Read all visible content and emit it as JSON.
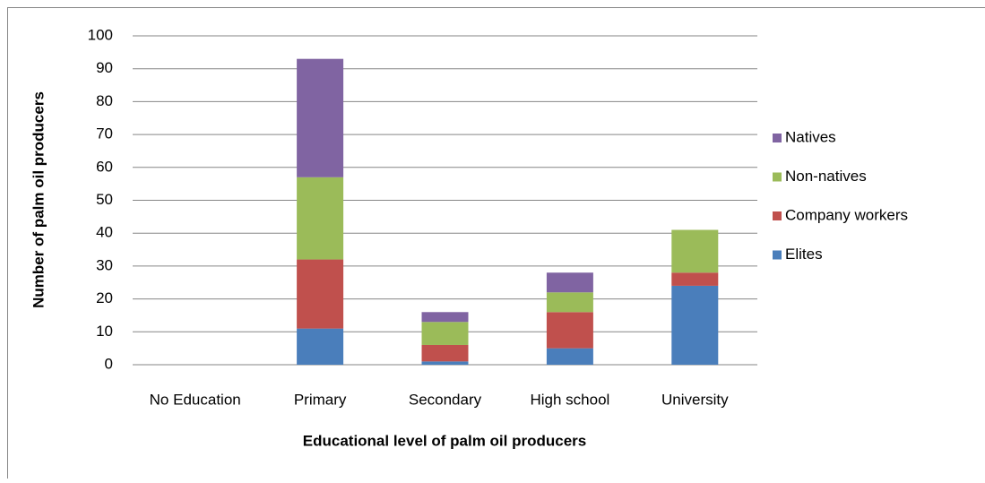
{
  "chart_data": {
    "type": "stacked_bar",
    "x_label": "Educational level of palm oil producers",
    "y_label": "Number of palm oil producers",
    "categories": [
      "No Education",
      "Primary",
      "Secondary",
      "High school",
      "University"
    ],
    "series": [
      {
        "name": "Elites",
        "color": "#4a7ebb",
        "values": [
          0,
          11,
          1,
          5,
          24
        ]
      },
      {
        "name": "Company workers",
        "color": "#c0504d",
        "values": [
          0,
          21,
          5,
          11,
          4
        ]
      },
      {
        "name": "Non-natives",
        "color": "#9bbb59",
        "values": [
          0,
          25,
          7,
          6,
          13
        ]
      },
      {
        "name": "Natives",
        "color": "#8064a2",
        "values": [
          0,
          36,
          3,
          6,
          0
        ]
      }
    ],
    "ylim": [
      0,
      100
    ],
    "yticks": [
      0,
      10,
      20,
      30,
      40,
      50,
      60,
      70,
      80,
      90,
      100
    ],
    "grid": true,
    "legend": "right"
  }
}
